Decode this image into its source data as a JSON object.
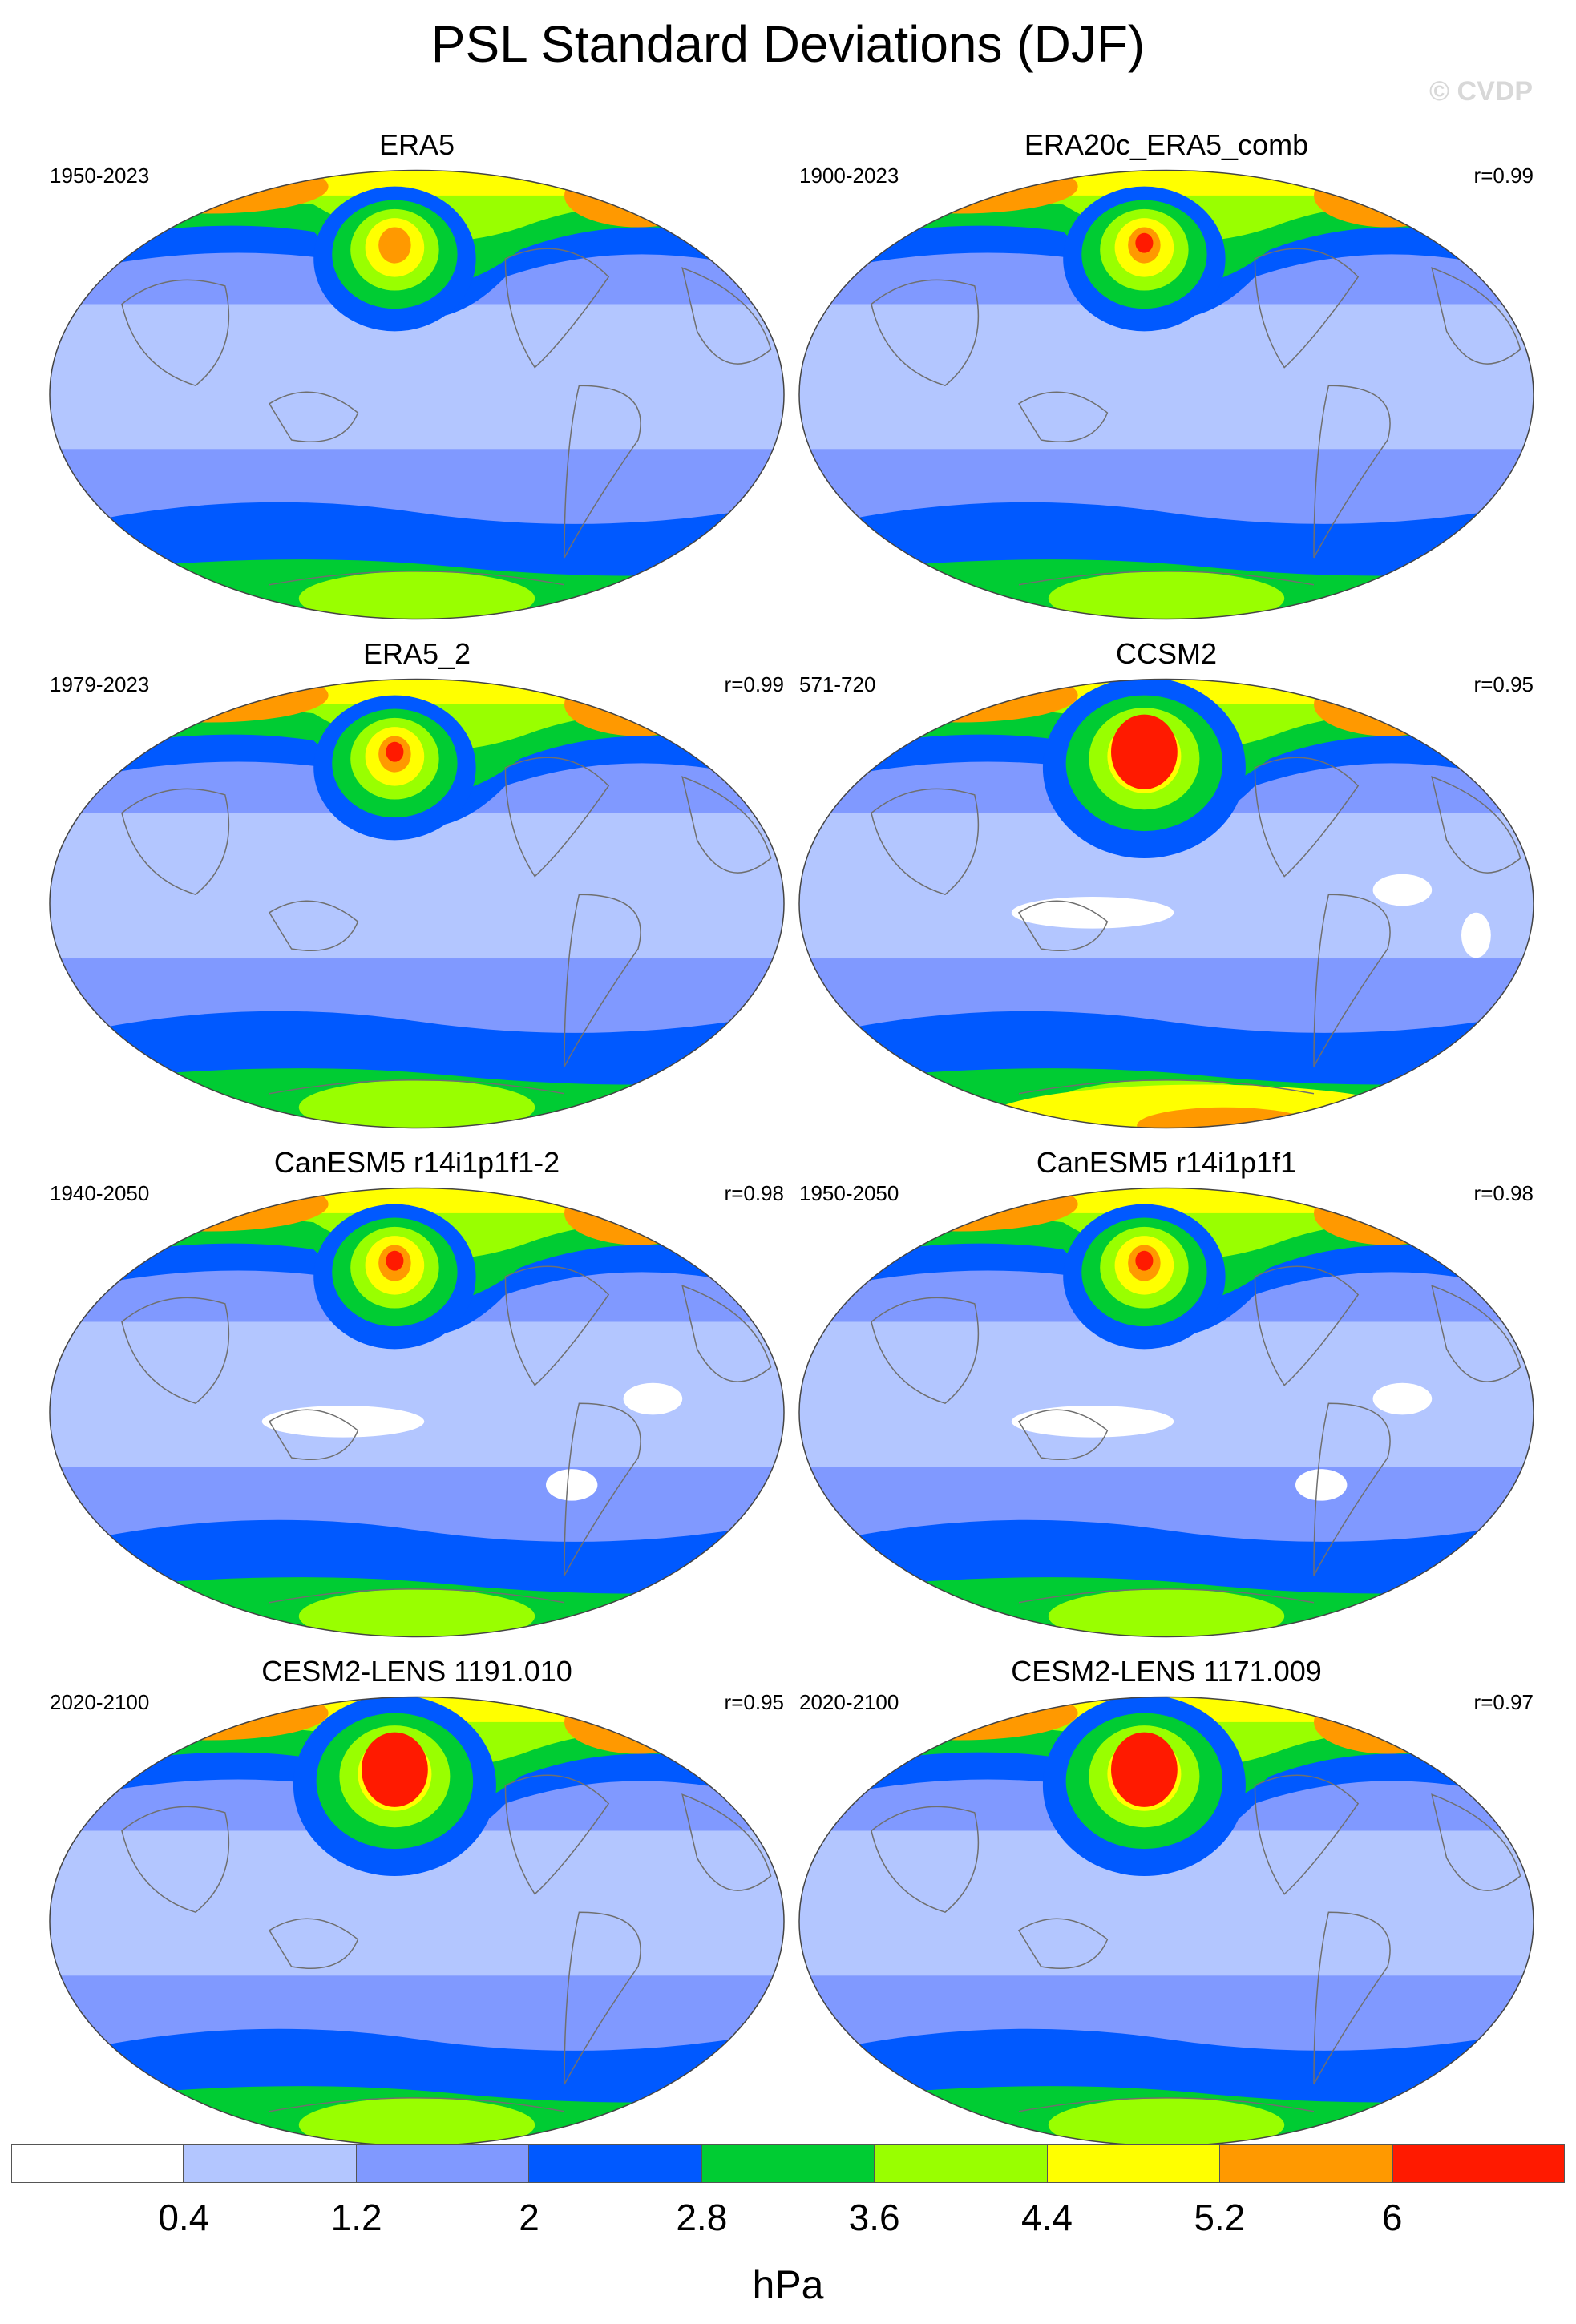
{
  "title": "PSL Standard Deviations (DJF)",
  "watermark": "© CVDP",
  "colorbar": {
    "colors": [
      "#ffffff",
      "#b3c6ff",
      "#8099ff",
      "#0059ff",
      "#00cc33",
      "#99ff00",
      "#ffff00",
      "#ff9900",
      "#ff1a00"
    ],
    "ticks": [
      "0.4",
      "1.2",
      "2",
      "2.8",
      "3.6",
      "4.4",
      "5.2",
      "6"
    ],
    "unit": "hPa"
  },
  "panels": [
    {
      "title": "ERA5",
      "years": "1950-2023",
      "r": ""
    },
    {
      "title": "ERA20c_ERA5_comb",
      "years": "1900-2023",
      "r": "r=0.99"
    },
    {
      "title": "ERA5_2",
      "years": "1979-2023",
      "r": "r=0.99"
    },
    {
      "title": "CCSM2",
      "years": "571-720",
      "r": "r=0.95"
    },
    {
      "title": "CanESM5 r14i1p1f1-2",
      "years": "1940-2050",
      "r": "r=0.98"
    },
    {
      "title": "CanESM5 r14i1p1f1",
      "years": "1950-2050",
      "r": "r=0.98"
    },
    {
      "title": "CESM2-LENS 1191.010",
      "years": "2020-2100",
      "r": "r=0.95"
    },
    {
      "title": "CESM2-LENS 1171.009",
      "years": "2020-2100",
      "r": "r=0.97"
    }
  ]
}
